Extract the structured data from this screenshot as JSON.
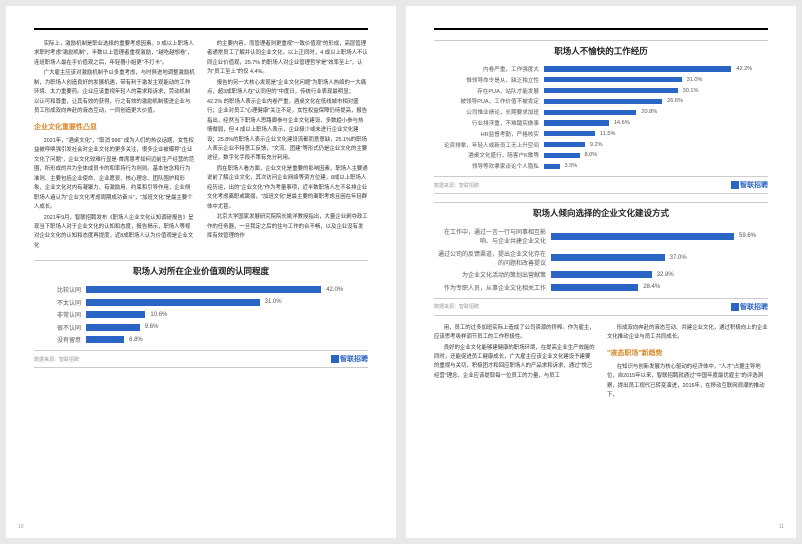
{
  "leftPage": {
    "pageNumber": "10",
    "col1": {
      "p1": "实际上，激励机制是职业选择的重要考虑因素。9 成以上职场人求职时考虑\"激励机制\"，半数以上管理者重视激励，\"越吃越想卷\"，连班职场人最在乎价值观之后，年轻器小姐更\"不打卡\"。",
      "p2": "广大雇主应该对激励机制予以多重考虑，与时俱进地调整激励机制，为职场人创造良好的发展机遇，带有利于激发主观能动的工作环境、太力重要药。企业应该重视年轻人的需求和诉求，劳动机制以认可和尊重，让其有效的获得，行之有效的激励机制使进企业与员工形成双向奔赴的液态互动，一同创造更大价值。",
      "heading": "企业文化重要性凸显",
      "p3": "2021年，\"酒桌文化\"，\"取消 996\" 成为人们的热议话题，女性权益被呼唤强引发社会对企业文化的更多关注，很多企业被曝称\"企业文化了问题\"，企业文化较难行显是·首席恩考如何迈前生产经营的范围，所形成的共为全体成员卡的和率持行为则则。基本信念和行为准则、主要包括企业使命、企业愿景、核心理念、团队围护和形象，企业文化对内有凝聚力、有激励用、约束和引导作用，企业侧职场人遍认为\"企业文化考虑周期成功奋斗\"，\"加班文化\"是最主要个人成长。",
      "p4": "2021年9月，智联招聘发布《职场人企业文化认知调研报告》呈现当下职场人对于企业文化的认知和态度，报告揭示，职场人等视对企业文化的认知和态度再提度，近8成职场人认为价值观是企业文化"
    },
    "col2": {
      "p1": "的主要内容，而管理者则更重视\"一致价值观\"的形成，高层管理者通常员工了解并认同企业文化，以上正同时，4 成以上职场人不认同企业价值观，25.7% 的职场人对企业管理哲学是\"效率至上\"，认为\"员工至上\"的仅 4.4%。",
      "p2": "报告的另一大核心发现是\"企业文化问题\"为职场人热络的一大痛点，超3成职场人在\"认同但的\"中度日，传统行业表现最明显；42.2% 的职场人表示企业内卷严重，酒桌文化在低线城市相对盛行；企业对员工\"心理健康\"关注不足，女性权益保障仍待提高，报告指出，经然当下职场人思路廊参与企业文化建设，多数趋小参与热情微弱，但 4 成以上职场人表示，企业极少或未进行企业文化建设；25.8%的职场人表示企业文化建设流都而意意缺，25.1%的职场人表示企业不特意工反馈，\"文流、团建\"等形式仍是企业文化的主要途径，数字化手段不策有充分利用。",
      "p3": "而在职场人看方面，企业文化是重要的影响因素，职场人主要通说前了解企业文化，其次访问企业网络等资方位建，8成以上职场人经历运，出的\"企业文化\"作为考量事项，近半数职场人左不名排企业文化考虑离职或跳弱，\"加班文化\"是最主要的离职考虑且困在年轻群体中尤甚。",
      "p4": "北京大学国家发展研究院院长姚洋教授指出，大量企业剥夺政工作的任务器，一旦我定之后的住与工作的合不畅，以及企业没有发挥有效管理的作"
    },
    "chart1": {
      "title": "职场人对所在企业价值观的认同程度",
      "source": "数据来源：智联招聘",
      "brand": "智联招聘",
      "labelWidth": 50,
      "maxValue": 50,
      "bars": [
        {
          "label": "比较认同",
          "value": 42.0,
          "display": "42.0%",
          "color": "#2a64c4"
        },
        {
          "label": "不太认同",
          "value": 31.0,
          "display": "31.0%",
          "color": "#2a64c4"
        },
        {
          "label": "非常认同",
          "value": 10.6,
          "display": "10.6%",
          "color": "#2a64c4"
        },
        {
          "label": "很不认同",
          "value": 9.6,
          "display": "9.6%",
          "color": "#2a64c4"
        },
        {
          "label": "没有留意",
          "value": 6.8,
          "display": "6.8%",
          "color": "#2a64c4"
        }
      ]
    }
  },
  "rightPage": {
    "pageNumber": "11",
    "chart2": {
      "title": "职场人不愉快的工作经历",
      "source": "数据来源：智联招聘",
      "brand": "智联招聘",
      "labelWidth": 108,
      "maxValue": 50,
      "bars": [
        {
          "label": "内卷严重，工作强度大",
          "value": 42.2,
          "display": "42.2%",
          "color": "#2a64c4"
        },
        {
          "label": "惟领导命令是从，缺乏独立性",
          "value": 31.0,
          "display": "31.0%",
          "color": "#2a64c4"
        },
        {
          "label": "存在PUA，站队才能发展",
          "value": 30.1,
          "display": "30.1%",
          "color": "#2a64c4"
        },
        {
          "label": "被领导PUA，工作价值不被肯定",
          "value": 26.6,
          "display": "26.6%",
          "color": "#2a64c4"
        },
        {
          "label": "公司惟业绩论，长期要求加班",
          "value": 20.8,
          "display": "20.8%",
          "color": "#2a64c4"
        },
        {
          "label": "行业排浮重，不难踏实做事",
          "value": 14.6,
          "display": "14.6%",
          "color": "#2a64c4"
        },
        {
          "label": "HR监督考勤，严格核实",
          "value": 11.5,
          "display": "11.5%",
          "color": "#2a64c4"
        },
        {
          "label": "论资排辈，年轻人或新员工无上升空间",
          "value": 9.2,
          "display": "9.2%",
          "color": "#2a64c4"
        },
        {
          "label": "酒桌文化盛行，陪客户K歌等",
          "value": 8.0,
          "display": "8.0%",
          "color": "#2a64c4"
        },
        {
          "label": "领导等欢拿家谈论个人隐私",
          "value": 3.5,
          "display": "3.5%",
          "color": "#2a64c4"
        }
      ]
    },
    "chart3": {
      "title": "职场人倾向选择的企业文化建设方式",
      "source": "数据来源：智联招聘",
      "brand": "智联招聘",
      "labelWidth": 115,
      "maxValue": 70,
      "bars": [
        {
          "label": "在工作中，通过一言一行与同事相互影响、与企业共建企业文化",
          "value": 59.6,
          "display": "59.6%",
          "color": "#2a64c4"
        },
        {
          "label": "通过公司的反馈渠道，提出企业文化存在的问题和改善提议",
          "value": 37.0,
          "display": "37.0%",
          "color": "#2a64c4"
        },
        {
          "label": "为企业文化活动的策划出营献策",
          "value": 32.8,
          "display": "32.8%",
          "color": "#2a64c4"
        },
        {
          "label": "作为专职人员，从事企业文化相关工作",
          "value": 28.4,
          "display": "28.4%",
          "color": "#2a64c4"
        }
      ]
    },
    "col1": {
      "p1": "用，员工的过多加班实际上造成了公司资源的挤榨。作为雇主，应该思考吸样调节员工的工作积极性。",
      "p2": "良好的企业文化能够建健康的职场环境，在提高企业生产效能的同时，还能促进员工健康成长，广大雇主应该企业文化建设予建要的重视与关切，积极团才和回应职场人的产品求和诉求，通过\"悦己经营\"理念，企业应该提取每一位员工的力量，与员工"
    },
    "col2": {
      "p1": "形成双向奔赴的液态互动、共建企业文化，通过积极向上的企业文化推动企业与员工共同成长。",
      "heading": "\"液态职场\"新趋势",
      "p2": "在知识与创新发展为核心驱动的经济体中，\"人才\"占据主导地位，自2015年以来，智联招聘就通过\"中国年度最优雇主\"的评选洞察，提出员工视代已转变演进，2016年，在移动互联网浪潮的推动下，"
    }
  }
}
